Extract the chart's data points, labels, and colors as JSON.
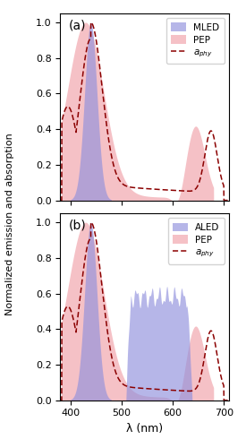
{
  "xlim": [
    380,
    710
  ],
  "ylim": [
    0.0,
    1.05
  ],
  "xticks": [
    400,
    500,
    600,
    700
  ],
  "yticks": [
    0.0,
    0.2,
    0.4,
    0.6,
    0.8,
    1.0
  ],
  "xlabel": "λ (nm)",
  "ylabel": "Normalized emission and absorption",
  "panel_labels": [
    "(a)",
    "(b)"
  ],
  "legend_a_led": "MLED",
  "legend_b_led": "ALED",
  "legend_pep": "PEP",
  "color_led": "#9090dd",
  "color_pep": "#f0a0a8",
  "color_aphy": "#8b0000",
  "alpha_led": 0.65,
  "alpha_pep": 0.65
}
